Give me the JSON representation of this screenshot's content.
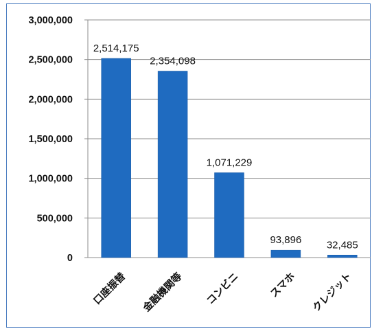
{
  "chart_data": {
    "type": "bar",
    "categories": [
      "口座振替",
      "金融機関等",
      "コンビニ",
      "スマホ",
      "クレジット"
    ],
    "values": [
      2514175,
      2354098,
      1071229,
      93896,
      32485
    ],
    "data_labels": [
      "2,514,175",
      "2,354,098",
      "1,071,229",
      "93,896",
      "32,485"
    ],
    "ylim": [
      0,
      3000000
    ],
    "yticks": [
      0,
      500000,
      1000000,
      1500000,
      2000000,
      2500000,
      3000000
    ],
    "ytick_labels": [
      "0",
      "500,000",
      "1,000,000",
      "1,500,000",
      "2,000,000",
      "2,500,000",
      "3,000,000"
    ],
    "bar_color": "#1f6bc0",
    "grid": true,
    "legend": "none"
  }
}
